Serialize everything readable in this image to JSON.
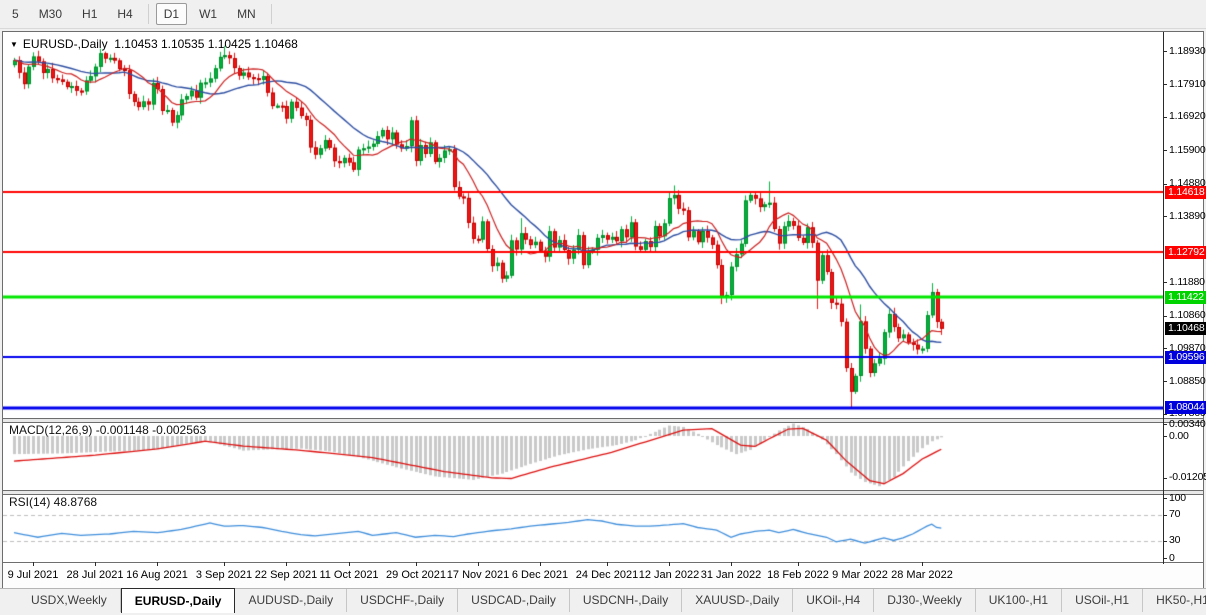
{
  "toolbar": {
    "timeframes": [
      "5",
      "M30",
      "H1",
      "H4",
      "D1",
      "W1",
      "MN"
    ],
    "selected": "D1",
    "separators_after": [
      3,
      6
    ]
  },
  "chart_header": {
    "dropdown_icon": "▼",
    "title": "EURUSD-,Daily",
    "ohlc": "1.10453 1.10535 1.10425 1.10468"
  },
  "indicators": {
    "macd_label": "MACD(12,26,9) -0.001148 -0.002563",
    "rsi_label": "RSI(14) 48.8768"
  },
  "chart_data": {
    "type": "candlestick",
    "symbol": "EURUSD-",
    "timeframe": "Daily",
    "title": "EURUSD-,Daily",
    "current": {
      "open": 1.10453,
      "high": 1.10535,
      "low": 1.10425,
      "close": 1.10468
    },
    "price_axis_range": [
      1.0786,
      1.1893
    ],
    "price_ticks": [
      {
        "text": "1.18930",
        "p": 1.1893
      },
      {
        "text": "1.17910",
        "p": 1.1791
      },
      {
        "text": "1.16920",
        "p": 1.1692
      },
      {
        "text": "1.15900",
        "p": 1.159
      },
      {
        "text": "1.14880",
        "p": 1.1488
      },
      {
        "text": "1.13890",
        "p": 1.1389
      },
      {
        "text": "1.11880",
        "p": 1.1188
      },
      {
        "text": "1.10860",
        "p": 1.1086
      },
      {
        "text": "1.09870",
        "p": 1.0987
      },
      {
        "text": "1.08850",
        "p": 1.0885
      },
      {
        "text": "1.07860",
        "p": 1.0786
      }
    ],
    "first_open": 1.185,
    "closes": [
      1.1865,
      1.1827,
      1.1792,
      1.1845,
      1.1876,
      1.1861,
      1.1826,
      1.1838,
      1.181,
      1.1806,
      1.1799,
      1.1783,
      1.1786,
      1.1772,
      1.177,
      1.1803,
      1.1816,
      1.1845,
      1.1886,
      1.187,
      1.1872,
      1.1864,
      1.1838,
      1.1834,
      1.1762,
      1.1738,
      1.1722,
      1.1739,
      1.173,
      1.1795,
      1.1777,
      1.171,
      1.1713,
      1.1675,
      1.1697,
      1.1745,
      1.1755,
      1.1772,
      1.1751,
      1.1796,
      1.1797,
      1.1809,
      1.184,
      1.1875,
      1.188,
      1.1871,
      1.1841,
      1.1818,
      1.1827,
      1.1813,
      1.181,
      1.1805,
      1.1816,
      1.1766,
      1.1725,
      1.1726,
      1.1725,
      1.1687,
      1.1738,
      1.172,
      1.1695,
      1.1683,
      1.1599,
      1.1577,
      1.1596,
      1.1621,
      1.1598,
      1.1557,
      1.1551,
      1.1567,
      1.1553,
      1.1531,
      1.1592,
      1.1596,
      1.1601,
      1.161,
      1.1633,
      1.1652,
      1.1624,
      1.1644,
      1.1608,
      1.1596,
      1.1603,
      1.1681,
      1.1558,
      1.1606,
      1.1579,
      1.1614,
      1.1555,
      1.1567,
      1.1589,
      1.1593,
      1.1478,
      1.1449,
      1.1445,
      1.1369,
      1.132,
      1.1318,
      1.1373,
      1.1289,
      1.1237,
      1.1247,
      1.1199,
      1.1208,
      1.1315,
      1.1288,
      1.1337,
      1.1318,
      1.1301,
      1.1311,
      1.1284,
      1.1266,
      1.1343,
      1.1294,
      1.1316,
      1.1286,
      1.126,
      1.1287,
      1.1331,
      1.124,
      1.1281,
      1.1287,
      1.1323,
      1.1331,
      1.1318,
      1.1326,
      1.1313,
      1.1349,
      1.1325,
      1.137,
      1.1297,
      1.1287,
      1.1313,
      1.1295,
      1.1359,
      1.1328,
      1.1367,
      1.1444,
      1.1454,
      1.1412,
      1.1407,
      1.1325,
      1.1343,
      1.131,
      1.1344,
      1.1324,
      1.1302,
      1.124,
      1.1144,
      1.1149,
      1.1235,
      1.1273,
      1.1305,
      1.1437,
      1.1454,
      1.1443,
      1.1417,
      1.1425,
      1.143,
      1.135,
      1.1306,
      1.1358,
      1.1374,
      1.136,
      1.1323,
      1.1308,
      1.1355,
      1.1308,
      1.1193,
      1.127,
      1.1219,
      1.1125,
      1.1122,
      1.1067,
      1.0926,
      1.0854,
      1.0902,
      1.1068,
      1.0985,
      1.0911,
      1.094,
      1.0955,
      1.1035,
      1.1091,
      1.1051,
      1.1017,
      1.1028,
      1.1004,
      1.0997,
      1.0983,
      1.0985,
      1.1087,
      1.1158,
      1.1067,
      1.1046
    ],
    "extremes": {
      "19": {
        "h": 1.1891
      },
      "33": {
        "l": 1.1664
      },
      "44": {
        "h": 1.1909
      },
      "63": {
        "l": 1.1563
      },
      "71": {
        "l": 1.1524
      },
      "83": {
        "h": 1.1692
      },
      "102": {
        "l": 1.1186
      },
      "106": {
        "h": 1.1383
      },
      "138": {
        "h": 1.1483
      },
      "148": {
        "l": 1.1121
      },
      "158": {
        "h": 1.1495
      },
      "168": {
        "l": 1.1106
      },
      "175": {
        "l": 1.0806
      },
      "177": {
        "h": 1.112
      },
      "192": {
        "h": 1.1185
      },
      "194": {
        "l": 1.1027,
        "h": 1.1076
      }
    },
    "up_color": "#00b43c",
    "up_border": "#008c2a",
    "down_color": "#f21616",
    "down_border": "#c00000",
    "ma_fast_period": 10,
    "ma_slow_period": 21,
    "ma_fast_color": "#cc2222",
    "ma_slow_color": "#2e4fa2",
    "hlines": [
      {
        "price": 1.14618,
        "text": "1.14618",
        "color": "#ff0000",
        "width": 2,
        "badge_bg": "#ff0000",
        "badge_fg": "#ffffff"
      },
      {
        "price": 1.12792,
        "text": "1.12792",
        "color": "#ff0000",
        "width": 2,
        "badge_bg": "#ff0000",
        "badge_fg": "#ffffff"
      },
      {
        "price": 1.11422,
        "text": "1.11422",
        "color": "#00e600",
        "width": 3,
        "badge_bg": "#00d400",
        "badge_fg": "#ffffff"
      },
      {
        "price": 1.09596,
        "text": "1.09596",
        "color": "#0000ee",
        "width": 2,
        "badge_bg": "#0000dd",
        "badge_fg": "#ffffff"
      },
      {
        "price": 1.08044,
        "text": "1.08044",
        "color": "#0000ee",
        "width": 3,
        "badge_bg": "#0000dd",
        "badge_fg": "#ffffff"
      }
    ],
    "bid_badge": {
      "price": 1.10468,
      "text": "1.10468",
      "bg": "#000000",
      "fg": "#ffffff"
    },
    "date_labels": [
      {
        "text": "9 Jul 2021",
        "i": 4
      },
      {
        "text": "28 Jul 2021",
        "i": 17
      },
      {
        "text": "16 Aug 2021",
        "i": 30
      },
      {
        "text": "3 Sep 2021",
        "i": 44
      },
      {
        "text": "22 Sep 2021",
        "i": 57
      },
      {
        "text": "11 Oct 2021",
        "i": 70
      },
      {
        "text": "29 Oct 2021",
        "i": 84
      },
      {
        "text": "17 Nov 2021",
        "i": 97
      },
      {
        "text": "6 Dec 2021",
        "i": 110
      },
      {
        "text": "24 Dec 2021",
        "i": 124
      },
      {
        "text": "12 Jan 2022",
        "i": 137
      },
      {
        "text": "31 Jan 2022",
        "i": 150
      },
      {
        "text": "18 Feb 2022",
        "i": 164
      },
      {
        "text": "9 Mar 2022",
        "i": 177
      },
      {
        "text": "28 Mar 2022",
        "i": 190
      }
    ],
    "macd": {
      "name": "MACD(12,26,9)",
      "value_main": -0.001148,
      "value_signal": -0.002563,
      "bar_color": "#c9c9c9",
      "signal_color": "#dd1111",
      "axis": [
        {
          "text": "0.003408",
          "v": 0.003408
        },
        {
          "text": "0.00",
          "v": 0.0
        },
        {
          "text": "-0.01205",
          "v": -0.01205
        }
      ],
      "histogram_keypoints": [
        [
          0,
          -0.0052
        ],
        [
          10,
          -0.005
        ],
        [
          17,
          -0.0046
        ],
        [
          25,
          -0.0042
        ],
        [
          30,
          -0.0038
        ],
        [
          36,
          -0.0022
        ],
        [
          40,
          -0.0013
        ],
        [
          44,
          -0.0028
        ],
        [
          48,
          -0.0042
        ],
        [
          54,
          -0.0038
        ],
        [
          60,
          -0.0036
        ],
        [
          66,
          -0.0044
        ],
        [
          72,
          -0.006
        ],
        [
          80,
          -0.009
        ],
        [
          88,
          -0.0116
        ],
        [
          96,
          -0.0126
        ],
        [
          102,
          -0.0108
        ],
        [
          108,
          -0.008
        ],
        [
          114,
          -0.0055
        ],
        [
          120,
          -0.0038
        ],
        [
          126,
          -0.0026
        ],
        [
          130,
          -0.0012
        ],
        [
          133,
          0.0006
        ],
        [
          137,
          0.003
        ],
        [
          140,
          0.0026
        ],
        [
          143,
          0.0006
        ],
        [
          147,
          -0.0026
        ],
        [
          151,
          -0.0052
        ],
        [
          154,
          -0.004
        ],
        [
          157,
          -0.0012
        ],
        [
          160,
          0.0016
        ],
        [
          163,
          0.0036
        ],
        [
          166,
          0.002
        ],
        [
          169,
          -0.001
        ],
        [
          172,
          -0.0052
        ],
        [
          175,
          -0.0105
        ],
        [
          178,
          -0.0132
        ],
        [
          181,
          -0.0144
        ],
        [
          184,
          -0.0118
        ],
        [
          187,
          -0.0072
        ],
        [
          190,
          -0.0035
        ],
        [
          192,
          -0.0015
        ],
        [
          194,
          -0.0004
        ]
      ],
      "signal_keypoints": [
        [
          0,
          -0.0072
        ],
        [
          17,
          -0.0055
        ],
        [
          30,
          -0.0037
        ],
        [
          40,
          -0.0015
        ],
        [
          48,
          -0.0029
        ],
        [
          60,
          -0.0041
        ],
        [
          75,
          -0.0062
        ],
        [
          90,
          -0.0102
        ],
        [
          100,
          -0.012
        ],
        [
          104,
          -0.0122
        ],
        [
          112,
          -0.009
        ],
        [
          125,
          -0.0047
        ],
        [
          133,
          -0.0013
        ],
        [
          140,
          0.0017
        ],
        [
          146,
          0.0021
        ],
        [
          152,
          -0.0026
        ],
        [
          155,
          -0.003
        ],
        [
          158,
          -0.0008
        ],
        [
          162,
          0.002
        ],
        [
          165,
          0.0022
        ],
        [
          170,
          -0.0012
        ],
        [
          174,
          -0.007
        ],
        [
          179,
          -0.0128
        ],
        [
          182,
          -0.0137
        ],
        [
          186,
          -0.0108
        ],
        [
          190,
          -0.0066
        ],
        [
          194,
          -0.0038
        ]
      ]
    },
    "rsi": {
      "name": "RSI(14)",
      "value": 48.8768,
      "line_color": "#3f8edb",
      "level_color": "#bdbdbd",
      "levels": [
        70,
        30
      ],
      "axis": [
        {
          "text": "100",
          "v": 100
        },
        {
          "text": "70",
          "v": 70
        },
        {
          "text": "30",
          "v": 30
        },
        {
          "text": "0",
          "v": 0
        }
      ],
      "keypoints": [
        [
          0,
          42
        ],
        [
          5,
          35
        ],
        [
          10,
          41
        ],
        [
          14,
          38
        ],
        [
          20,
          40
        ],
        [
          25,
          44
        ],
        [
          30,
          42
        ],
        [
          35,
          47
        ],
        [
          41,
          57
        ],
        [
          44,
          52
        ],
        [
          48,
          53
        ],
        [
          52,
          50
        ],
        [
          56,
          44
        ],
        [
          60,
          39
        ],
        [
          63,
          37
        ],
        [
          68,
          41
        ],
        [
          72,
          44
        ],
        [
          75,
          38
        ],
        [
          80,
          42
        ],
        [
          84,
          35
        ],
        [
          88,
          38
        ],
        [
          92,
          36
        ],
        [
          95,
          40
        ],
        [
          100,
          45
        ],
        [
          104,
          48
        ],
        [
          108,
          52
        ],
        [
          112,
          55
        ],
        [
          116,
          58
        ],
        [
          120,
          62
        ],
        [
          123,
          60
        ],
        [
          126,
          55
        ],
        [
          130,
          52
        ],
        [
          133,
          52
        ],
        [
          137,
          54
        ],
        [
          140,
          56
        ],
        [
          143,
          50
        ],
        [
          147,
          46
        ],
        [
          150,
          35
        ],
        [
          152,
          40
        ],
        [
          155,
          44
        ],
        [
          158,
          46
        ],
        [
          160,
          42
        ],
        [
          163,
          47
        ],
        [
          166,
          41
        ],
        [
          168,
          38
        ],
        [
          170,
          35
        ],
        [
          172,
          28
        ],
        [
          175,
          32
        ],
        [
          178,
          26
        ],
        [
          180,
          30
        ],
        [
          182,
          34
        ],
        [
          184,
          30
        ],
        [
          186,
          34
        ],
        [
          188,
          40
        ],
        [
          190,
          48
        ],
        [
          191,
          52
        ],
        [
          192,
          55
        ],
        [
          193,
          50
        ],
        [
          194,
          49
        ]
      ]
    }
  },
  "tabs": {
    "items": [
      {
        "label": "USDX,Weekly"
      },
      {
        "label": "EURUSD-,Daily"
      },
      {
        "label": "AUDUSD-,Daily"
      },
      {
        "label": "USDCHF-,Daily"
      },
      {
        "label": "USDCAD-,Daily"
      },
      {
        "label": "USDCNH-,Daily"
      },
      {
        "label": "XAUUSD-,Daily"
      },
      {
        "label": "UKOil-,H4"
      },
      {
        "label": "DJ30-,Weekly"
      },
      {
        "label": "UK100-,H1"
      },
      {
        "label": "USOil-,H1"
      },
      {
        "label": "HK50-,H1"
      }
    ],
    "active_index": 1,
    "nav_left": "◄",
    "nav_right": "►"
  }
}
